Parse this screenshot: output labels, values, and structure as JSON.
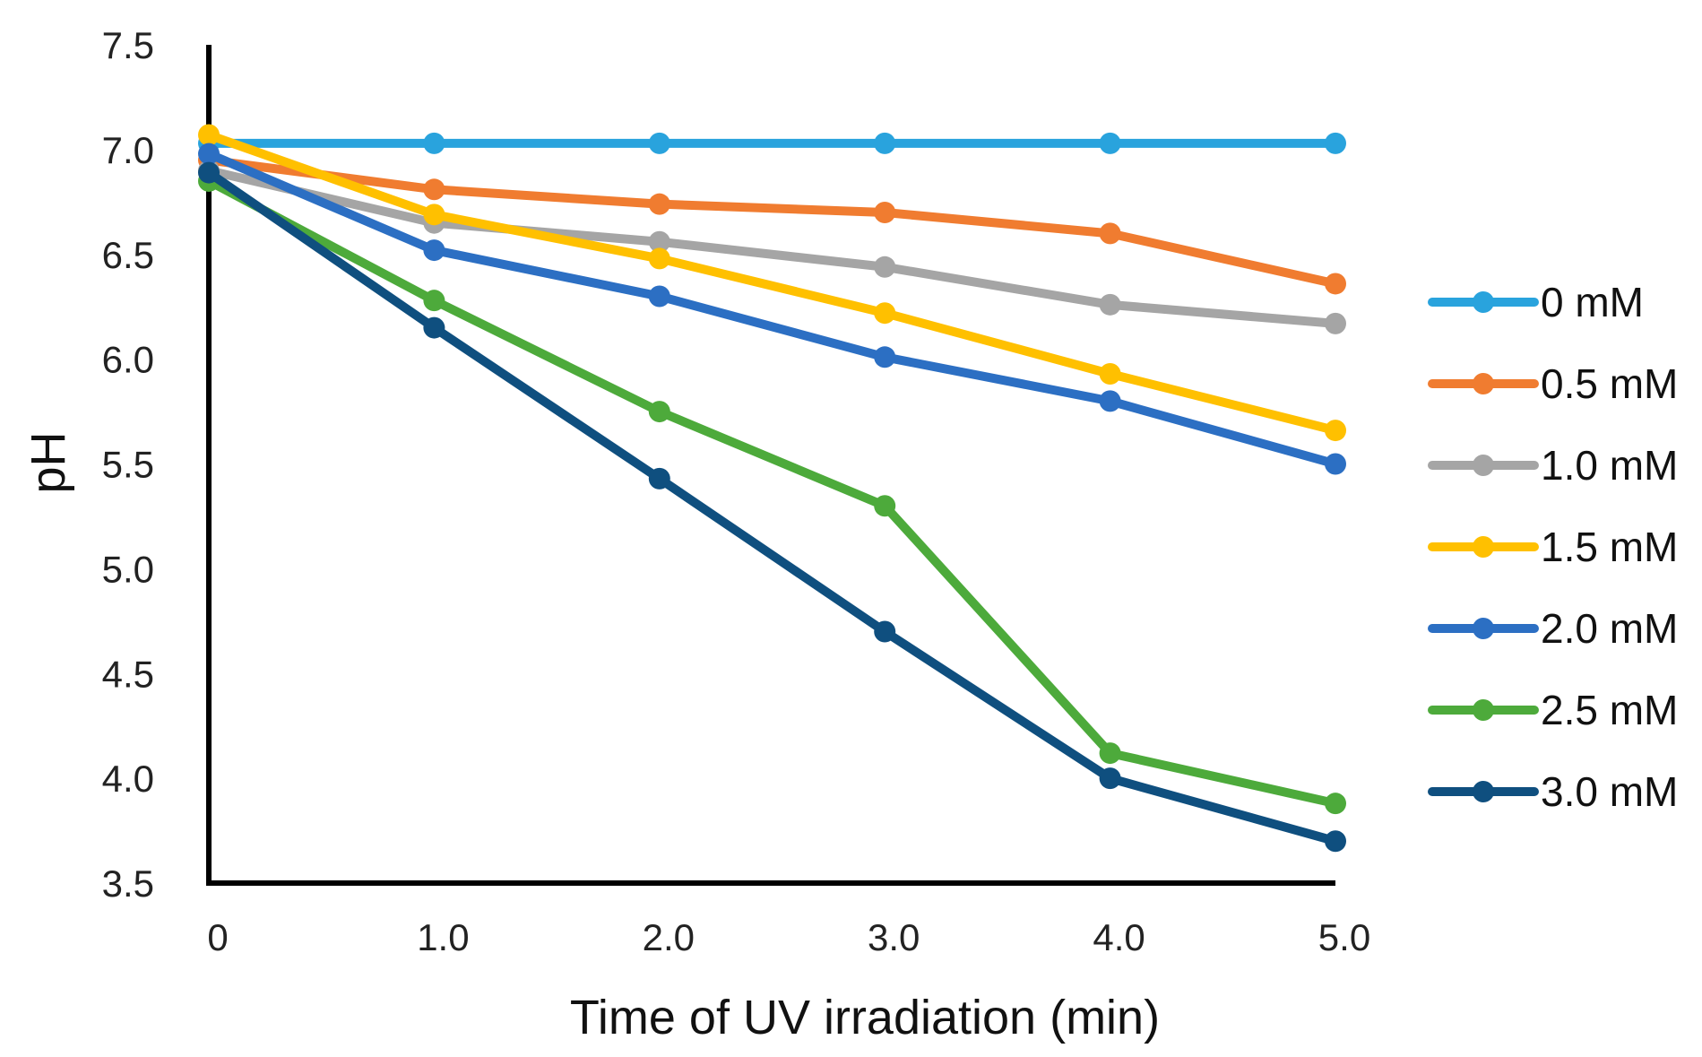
{
  "chart_data": {
    "type": "line",
    "title": "",
    "xlabel": "Time of UV irradiation (min)",
    "ylabel": "pH",
    "x": [
      0,
      1.0,
      2.0,
      3.0,
      4.0,
      5.0
    ],
    "x_tick_labels": [
      "0",
      "1.0",
      "2.0",
      "3.0",
      "4.0",
      "5.0"
    ],
    "y_tick_labels": [
      "3.5",
      "4.0",
      "4.5",
      "5.0",
      "5.5",
      "6.0",
      "6.5",
      "7.0",
      "7.5"
    ],
    "y_ticks": [
      3.5,
      4.0,
      4.5,
      5.0,
      5.5,
      6.0,
      6.5,
      7.0,
      7.5
    ],
    "xlim": [
      0,
      5.0
    ],
    "ylim": [
      3.5,
      7.5
    ],
    "grid": false,
    "legend_position": "right",
    "series": [
      {
        "name": "0 mM",
        "color": "#29A3DD",
        "values": [
          7.03,
          7.03,
          7.03,
          7.03,
          7.03,
          7.03
        ]
      },
      {
        "name": "0.5 mM",
        "color": "#F07C30",
        "values": [
          6.95,
          6.81,
          6.74,
          6.7,
          6.6,
          6.36
        ]
      },
      {
        "name": "1.0 mM",
        "color": "#A5A5A5",
        "values": [
          6.9,
          6.65,
          6.56,
          6.44,
          6.26,
          6.17
        ]
      },
      {
        "name": "1.5 mM",
        "color": "#FFC000",
        "values": [
          7.07,
          6.69,
          6.48,
          6.22,
          5.93,
          5.66
        ]
      },
      {
        "name": "2.0 mM",
        "color": "#2C6FC3",
        "values": [
          6.98,
          6.52,
          6.3,
          6.01,
          5.8,
          5.5
        ]
      },
      {
        "name": "2.5 mM",
        "color": "#4DAA3B",
        "values": [
          6.85,
          6.28,
          5.75,
          5.3,
          4.12,
          3.88
        ]
      },
      {
        "name": "3.0 mM",
        "color": "#0F4F7F",
        "values": [
          6.89,
          6.15,
          5.43,
          4.7,
          4.0,
          3.7
        ]
      }
    ]
  }
}
